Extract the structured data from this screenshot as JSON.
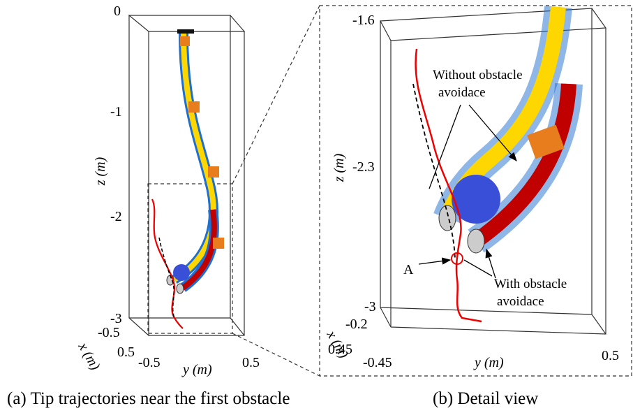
{
  "panel_a": {
    "z_ticks": [
      "0",
      "-1",
      "-2",
      "-3"
    ],
    "x_ticks": [
      "-0.5",
      "0.5"
    ],
    "y_ticks": [
      "-0.5",
      "0.5"
    ],
    "z_label": "z (m)",
    "x_label": "x (m)",
    "y_label": "y (m)",
    "caption": "(a) Tip trajectories near the first obstacle"
  },
  "panel_b": {
    "z_ticks": [
      "-1.6",
      "-2.3",
      "-3"
    ],
    "x_ticks": [
      "-0.2",
      "0.45"
    ],
    "y_ticks": [
      "-0.45",
      "0.5"
    ],
    "z_label": "z (m)",
    "x_label": "x (m)",
    "y_label": "y (m)",
    "annotation_without": [
      "Without obstacle",
      "avoidace"
    ],
    "annotation_with": [
      "With obstacle",
      "avoidace"
    ],
    "point_label": "A",
    "caption": "(b) Detail view"
  }
}
